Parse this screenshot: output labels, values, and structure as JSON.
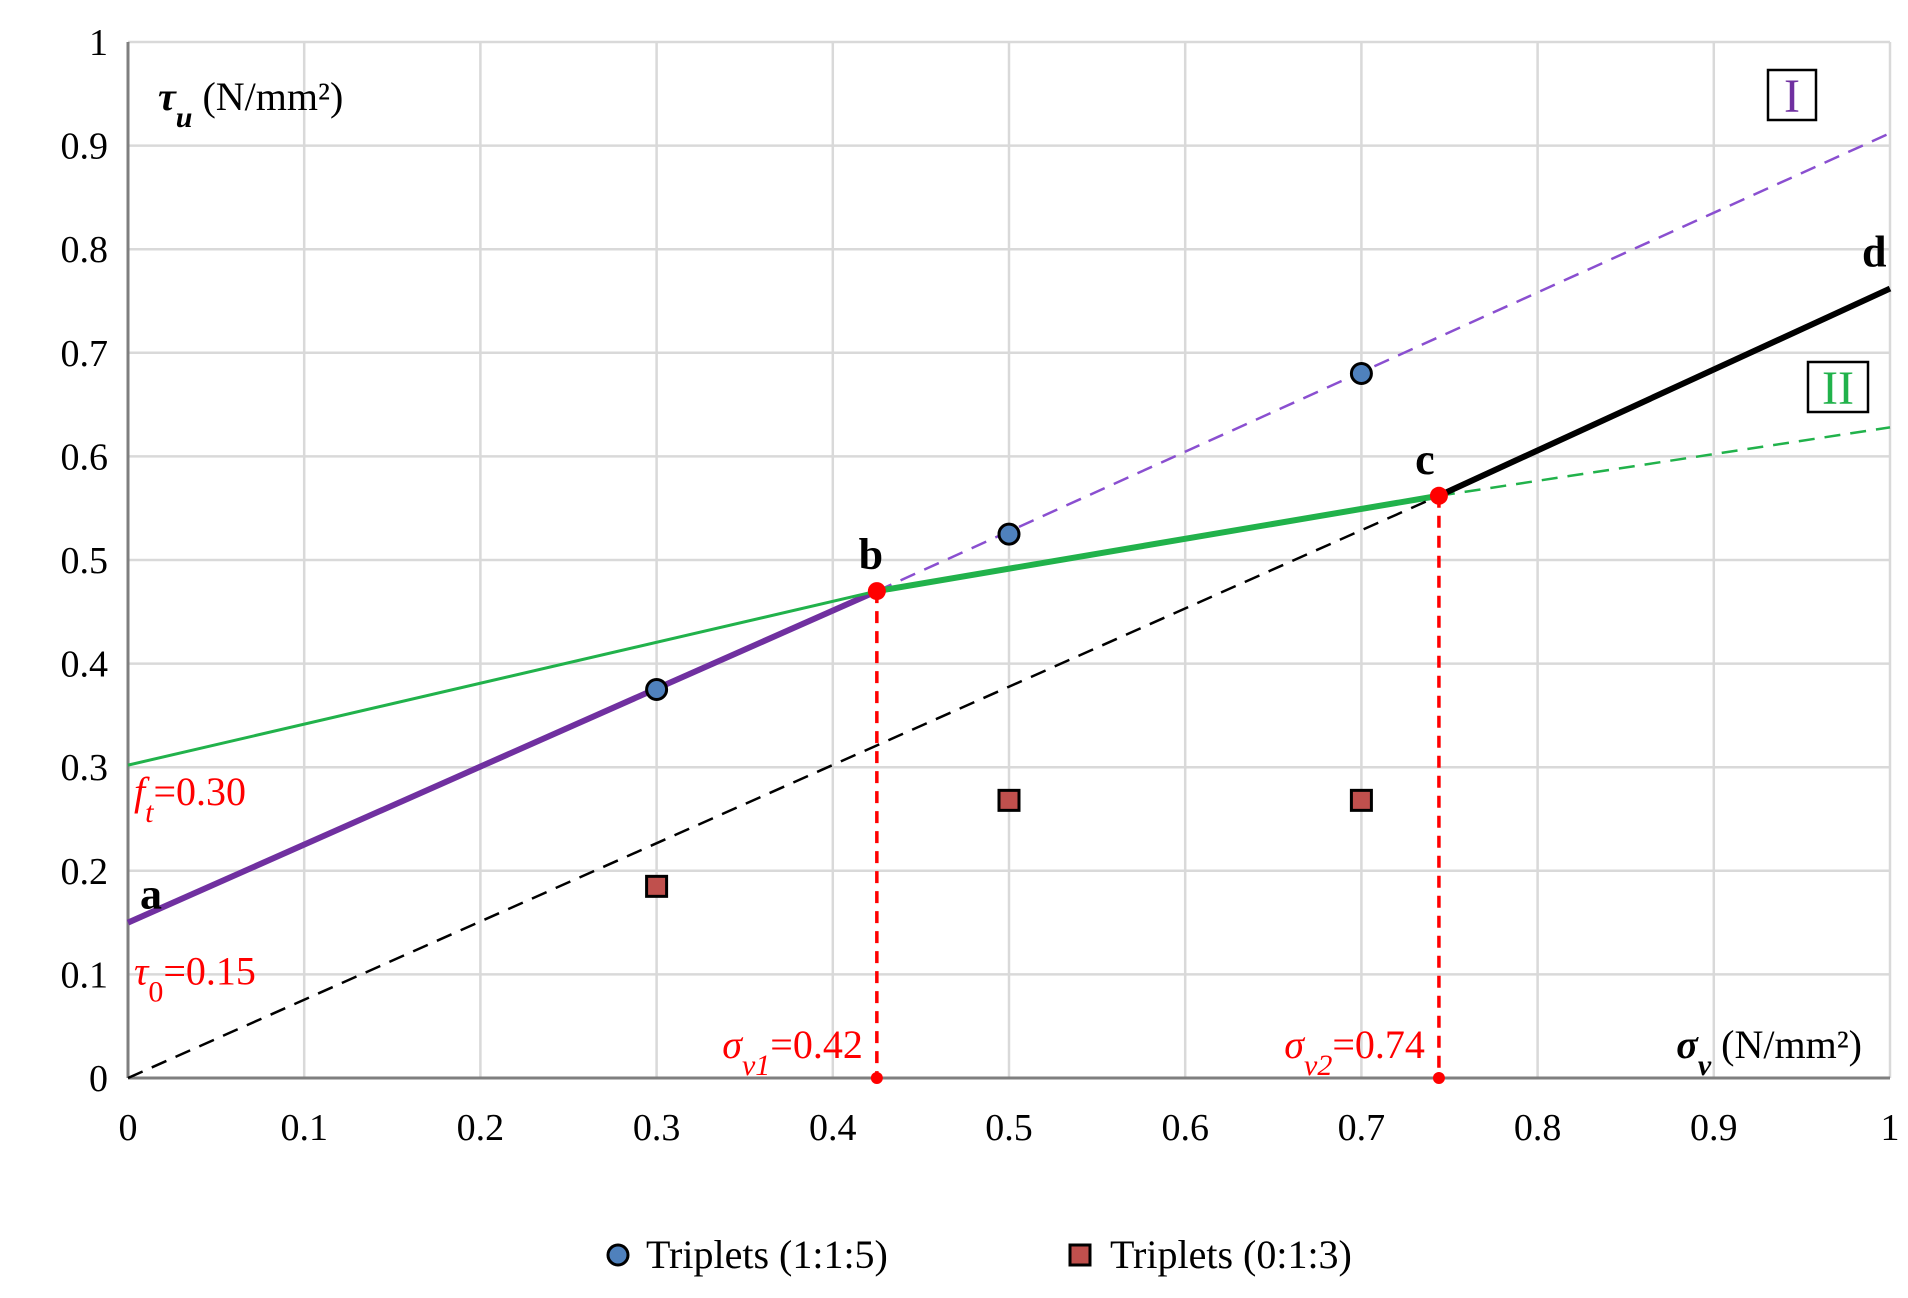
{
  "chart_data": {
    "type": "line",
    "x": {
      "label_symbol": "σ",
      "label_sub": "v",
      "label_units": " (N/mm²)",
      "range": [
        0,
        1
      ],
      "ticks": [
        "0",
        "0.1",
        "0.2",
        "0.3",
        "0.4",
        "0.5",
        "0.6",
        "0.7",
        "0.8",
        "0.9",
        "1"
      ]
    },
    "y": {
      "label_symbol": "τ",
      "label_sub": "u",
      "label_units": " (N/mm²)",
      "range": [
        0,
        1
      ],
      "ticks": [
        "0",
        "0.1",
        "0.2",
        "0.3",
        "0.4",
        "0.5",
        "0.6",
        "0.7",
        "0.8",
        "0.9",
        "1"
      ]
    },
    "grid": true,
    "series": [
      {
        "name": "Criterion I (extension)",
        "style": "dashed",
        "color": "#8a4fd0",
        "points": [
          [
            0.425,
            0.47
          ],
          [
            1.0,
            0.912
          ]
        ]
      },
      {
        "name": "Criterion I (active)",
        "style": "solid-thick",
        "color": "#7030a0",
        "points": [
          [
            0,
            0.15
          ],
          [
            0.425,
            0.47
          ]
        ]
      },
      {
        "name": "Criterion II (thin)",
        "style": "solid-thin",
        "color": "#21b24b",
        "points": [
          [
            0,
            0.302
          ],
          [
            0.425,
            0.47
          ]
        ]
      },
      {
        "name": "Criterion II (active)",
        "style": "solid-thick",
        "color": "#21b24b",
        "points": [
          [
            0.425,
            0.47
          ],
          [
            0.744,
            0.562
          ]
        ]
      },
      {
        "name": "Criterion II (extension)",
        "style": "dashed",
        "color": "#21b24b",
        "points": [
          [
            0.744,
            0.562
          ],
          [
            1.0,
            0.628
          ]
        ]
      },
      {
        "name": "Friction line (dashed)",
        "style": "dashed",
        "color": "#000000",
        "points": [
          [
            0,
            0
          ],
          [
            0.744,
            0.562
          ]
        ]
      },
      {
        "name": "Friction line (active)",
        "style": "solid-thick",
        "color": "#000000",
        "points": [
          [
            0.744,
            0.562
          ],
          [
            1.0,
            0.762
          ]
        ]
      }
    ],
    "scatter": [
      {
        "name": "Triplets (1:1:5)",
        "marker": "circle",
        "color": "#4f81bd",
        "points": [
          [
            0.3,
            0.375
          ],
          [
            0.5,
            0.525
          ],
          [
            0.7,
            0.68
          ]
        ]
      },
      {
        "name": "Triplets (0:1:3)",
        "marker": "square",
        "color": "#c0504d",
        "points": [
          [
            0.3,
            0.185
          ],
          [
            0.5,
            0.268
          ],
          [
            0.7,
            0.268
          ]
        ]
      }
    ],
    "key_points": [
      {
        "label": "a",
        "x": 0,
        "y": 0.15
      },
      {
        "label": "b",
        "x": 0.425,
        "y": 0.47
      },
      {
        "label": "c",
        "x": 0.744,
        "y": 0.562
      },
      {
        "label": "d",
        "x": 1.0,
        "y": 0.762
      }
    ],
    "annotations": {
      "ft": {
        "sym": "f",
        "sub": "t",
        "value": "=0.30",
        "x": 0,
        "y": 0.3
      },
      "tau0": {
        "sym": "τ",
        "sub": "0",
        "value": "=0.15",
        "x": 0,
        "y": 0.15
      },
      "sv1": {
        "sym": "σ",
        "sub": "v1",
        "value": "=0.42",
        "x": 0.425
      },
      "sv2": {
        "sym": "σ",
        "sub": "v2",
        "value": "=0.74",
        "x": 0.744
      },
      "region1": "I",
      "region2": "II"
    },
    "legend": {
      "position": "bottom",
      "items": [
        "Triplets (1:1:5)",
        "Triplets (0:1:3)"
      ]
    }
  }
}
